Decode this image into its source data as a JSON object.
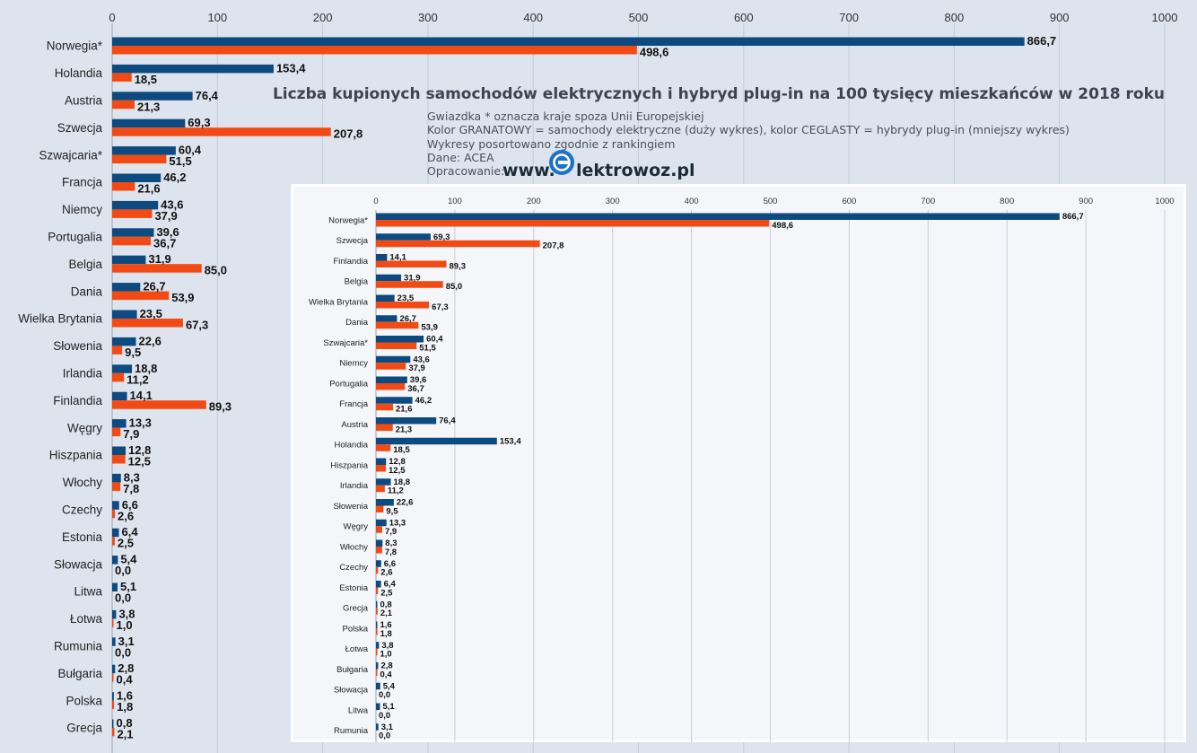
{
  "title": "Liczba kupionych samochodów elektrycznych i hybryd plug-in na 100 tysięcy mieszkańców w 2018 roku",
  "notes": [
    "Gwiazdka * oznacza kraje spoza Unii Europejskiej",
    "Kolor GRANATOWY = samochody elektryczne (duży wykres), kolor CEGLASTY = hybrydy plug-in (mniejszy wykres)",
    "Wykresy posortowano zgodnie z rankingiem",
    "Dane: ACEA"
  ],
  "credit_label": "Opracowanie:",
  "brand": {
    "prefix": "www.",
    "suffix": "lektrowoz.pl"
  },
  "colors": {
    "ev": "#0d4a80",
    "phev": "#f24a14",
    "background": "#dde4ee",
    "inset_background": "#f4f6fa"
  },
  "chart_data": [
    {
      "type": "bar",
      "orientation": "horizontal",
      "xlim": [
        0,
        1000
      ],
      "ticks": [
        0,
        100,
        200,
        300,
        400,
        500,
        600,
        700,
        800,
        900,
        1000
      ],
      "grid": true,
      "decimal_separator": ",",
      "categories": [
        "Norwegia*",
        "Holandia",
        "Austria",
        "Szwecja",
        "Szwajcaria*",
        "Francja",
        "Niemcy",
        "Portugalia",
        "Belgia",
        "Dania",
        "Wielka Brytania",
        "Słowenia",
        "Irlandia",
        "Finlandia",
        "Węgry",
        "Hiszpania",
        "Włochy",
        "Czechy",
        "Estonia",
        "Słowacja",
        "Litwa",
        "Łotwa",
        "Rumunia",
        "Bułgaria",
        "Polska",
        "Grecja"
      ],
      "series": [
        {
          "values": [
            866.7,
            153.4,
            76.4,
            69.3,
            60.4,
            46.2,
            43.6,
            39.6,
            31.9,
            26.7,
            23.5,
            22.6,
            18.8,
            14.1,
            13.3,
            12.8,
            8.3,
            6.6,
            6.4,
            5.4,
            5.1,
            3.8,
            3.1,
            2.8,
            1.6,
            0.8
          ]
        },
        {
          "values": [
            498.6,
            18.5,
            21.3,
            207.8,
            51.5,
            21.6,
            37.9,
            36.7,
            85.0,
            53.9,
            67.3,
            9.5,
            11.2,
            89.3,
            7.9,
            12.5,
            7.8,
            2.6,
            2.5,
            0.0,
            0.0,
            1.0,
            0.0,
            0.4,
            1.8,
            2.1
          ]
        }
      ]
    },
    {
      "type": "bar",
      "orientation": "horizontal",
      "xlim": [
        0,
        1000
      ],
      "ticks": [
        0,
        100,
        200,
        300,
        400,
        500,
        600,
        700,
        800,
        900,
        1000
      ],
      "grid": true,
      "decimal_separator": ",",
      "categories": [
        "Norwegia*",
        "Szwecja",
        "Finlandia",
        "Belgia",
        "Wielka Brytania",
        "Dania",
        "Szwajcaria*",
        "Niemcy",
        "Portugalia",
        "Francja",
        "Austria",
        "Holandia",
        "Hiszpania",
        "Irlandia",
        "Słowenia",
        "Węgry",
        "Włochy",
        "Czechy",
        "Estonia",
        "Grecja",
        "Polska",
        "Łotwa",
        "Bułgaria",
        "Słowacja",
        "Litwa",
        "Rumunia"
      ],
      "series": [
        {
          "values": [
            866.7,
            69.3,
            14.1,
            31.9,
            23.5,
            26.7,
            60.4,
            43.6,
            39.6,
            46.2,
            76.4,
            153.4,
            12.8,
            18.8,
            22.6,
            13.3,
            8.3,
            6.6,
            6.4,
            0.8,
            1.6,
            3.8,
            2.8,
            5.4,
            5.1,
            3.1
          ]
        },
        {
          "values": [
            498.6,
            207.8,
            89.3,
            85.0,
            67.3,
            53.9,
            51.5,
            37.9,
            36.7,
            21.6,
            21.3,
            18.5,
            12.5,
            11.2,
            9.5,
            7.9,
            7.8,
            2.6,
            2.5,
            2.1,
            1.8,
            1.0,
            0.4,
            0.0,
            0.0,
            0.0
          ]
        }
      ]
    }
  ]
}
